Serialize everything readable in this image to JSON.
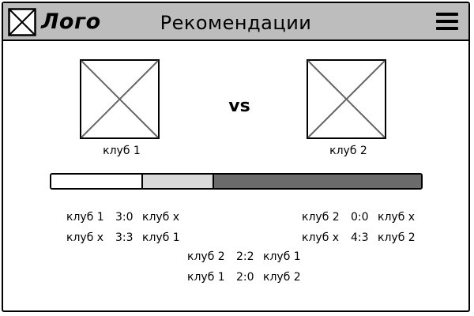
{
  "header": {
    "logo_text": "Лого",
    "title": "Рекомендации",
    "background": "#bdbdbd"
  },
  "match": {
    "club_left": "клуб 1",
    "club_right": "клуб 2",
    "vs_label": "vs"
  },
  "probability_bar": {
    "segments": [
      {
        "share": 0.245,
        "color": "#ffffff"
      },
      {
        "share": 0.19,
        "color": "#d9d9d9"
      },
      {
        "share": 0.565,
        "color": "#6b6b6b"
      }
    ]
  },
  "results": {
    "left": [
      {
        "team_a": "клуб 1",
        "score": "3:0",
        "team_b": "клуб x"
      },
      {
        "team_a": "клуб x",
        "score": "3:3",
        "team_b": "клуб 1"
      }
    ],
    "right": [
      {
        "team_a": "клуб 2",
        "score": "0:0",
        "team_b": "клуб x"
      },
      {
        "team_a": "клуб x",
        "score": "4:3",
        "team_b": "клуб 2"
      }
    ],
    "head_to_head": [
      {
        "team_a": "клуб 2",
        "score": "2:2",
        "team_b": "клуб 1"
      },
      {
        "team_a": "клуб 1",
        "score": "2:0",
        "team_b": "клуб 2"
      }
    ]
  }
}
